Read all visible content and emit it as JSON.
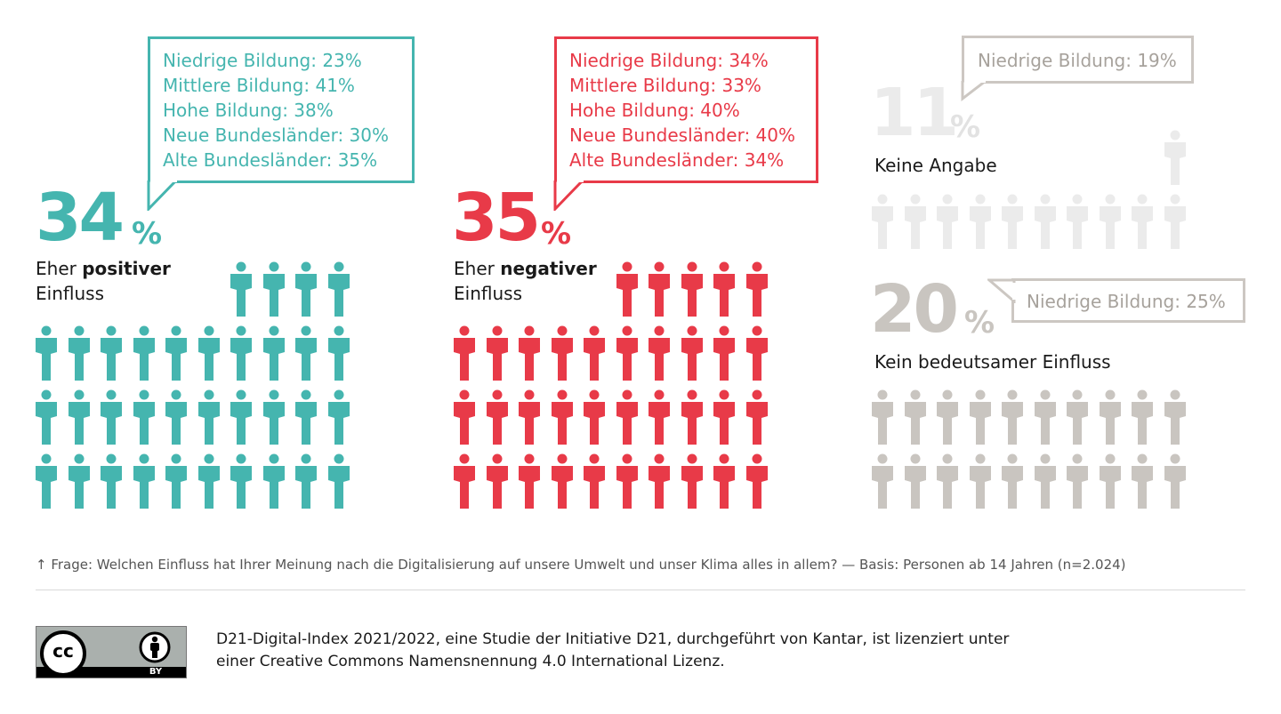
{
  "chart_data": {
    "type": "pictogram",
    "panels": [
      {
        "id": "positive",
        "percent": "34",
        "unit": "%",
        "value": 34,
        "label_prefix": "Eher",
        "label_bold": "positiver",
        "label_line2": "Einfluss",
        "color": "#45b5af",
        "breakdown": [
          "Niedrige Bildung: 23%",
          "Mittlere Bildung: 41%",
          "Hohe Bildung: 38%",
          "Neue Bundesländer: 30%",
          "Alte Bundesländer: 35%"
        ],
        "icon_count": 34
      },
      {
        "id": "negative",
        "percent": "35",
        "unit": "%",
        "value": 35,
        "label_prefix": "Eher",
        "label_bold": "negativer",
        "label_line2": "Einfluss",
        "color": "#e83a48",
        "breakdown": [
          "Niedrige Bildung: 34%",
          "Mittlere Bildung: 33%",
          "Hohe Bildung: 40%",
          "Neue Bundesländer: 40%",
          "Alte Bundesländer: 34%"
        ],
        "icon_count": 35
      },
      {
        "id": "no-answer",
        "percent": "11",
        "unit": "%",
        "value": 11,
        "label": "Keine Angabe",
        "color": "#ebebeb",
        "breakdown": [
          "Niedrige Bildung: 19%"
        ],
        "icon_count": 11
      },
      {
        "id": "no-significant",
        "percent": "20",
        "unit": "%",
        "value": 20,
        "label": "Kein bedeutsamer Einfluss",
        "color": "#c9c5c0",
        "breakdown": [
          "Niedrige Bildung: 25%"
        ],
        "icon_count": 20
      }
    ]
  },
  "footnote": "↑ Frage: Welchen Einfluss hat Ihrer Meinung nach die Digitalisierung auf unsere Umwelt und unser Klima alles in allem? — Basis: Personen ab 14 Jahren (n=2.024)",
  "license": {
    "badge_cc": "cc",
    "badge_by": "BY",
    "line1": "D21-Digital-Index 2021/2022, eine Studie der Initiative D21, durchgeführt von Kantar, ist lizenziert unter",
    "line2": "einer Creative Commons Namensnennung 4.0 International Lizenz."
  }
}
